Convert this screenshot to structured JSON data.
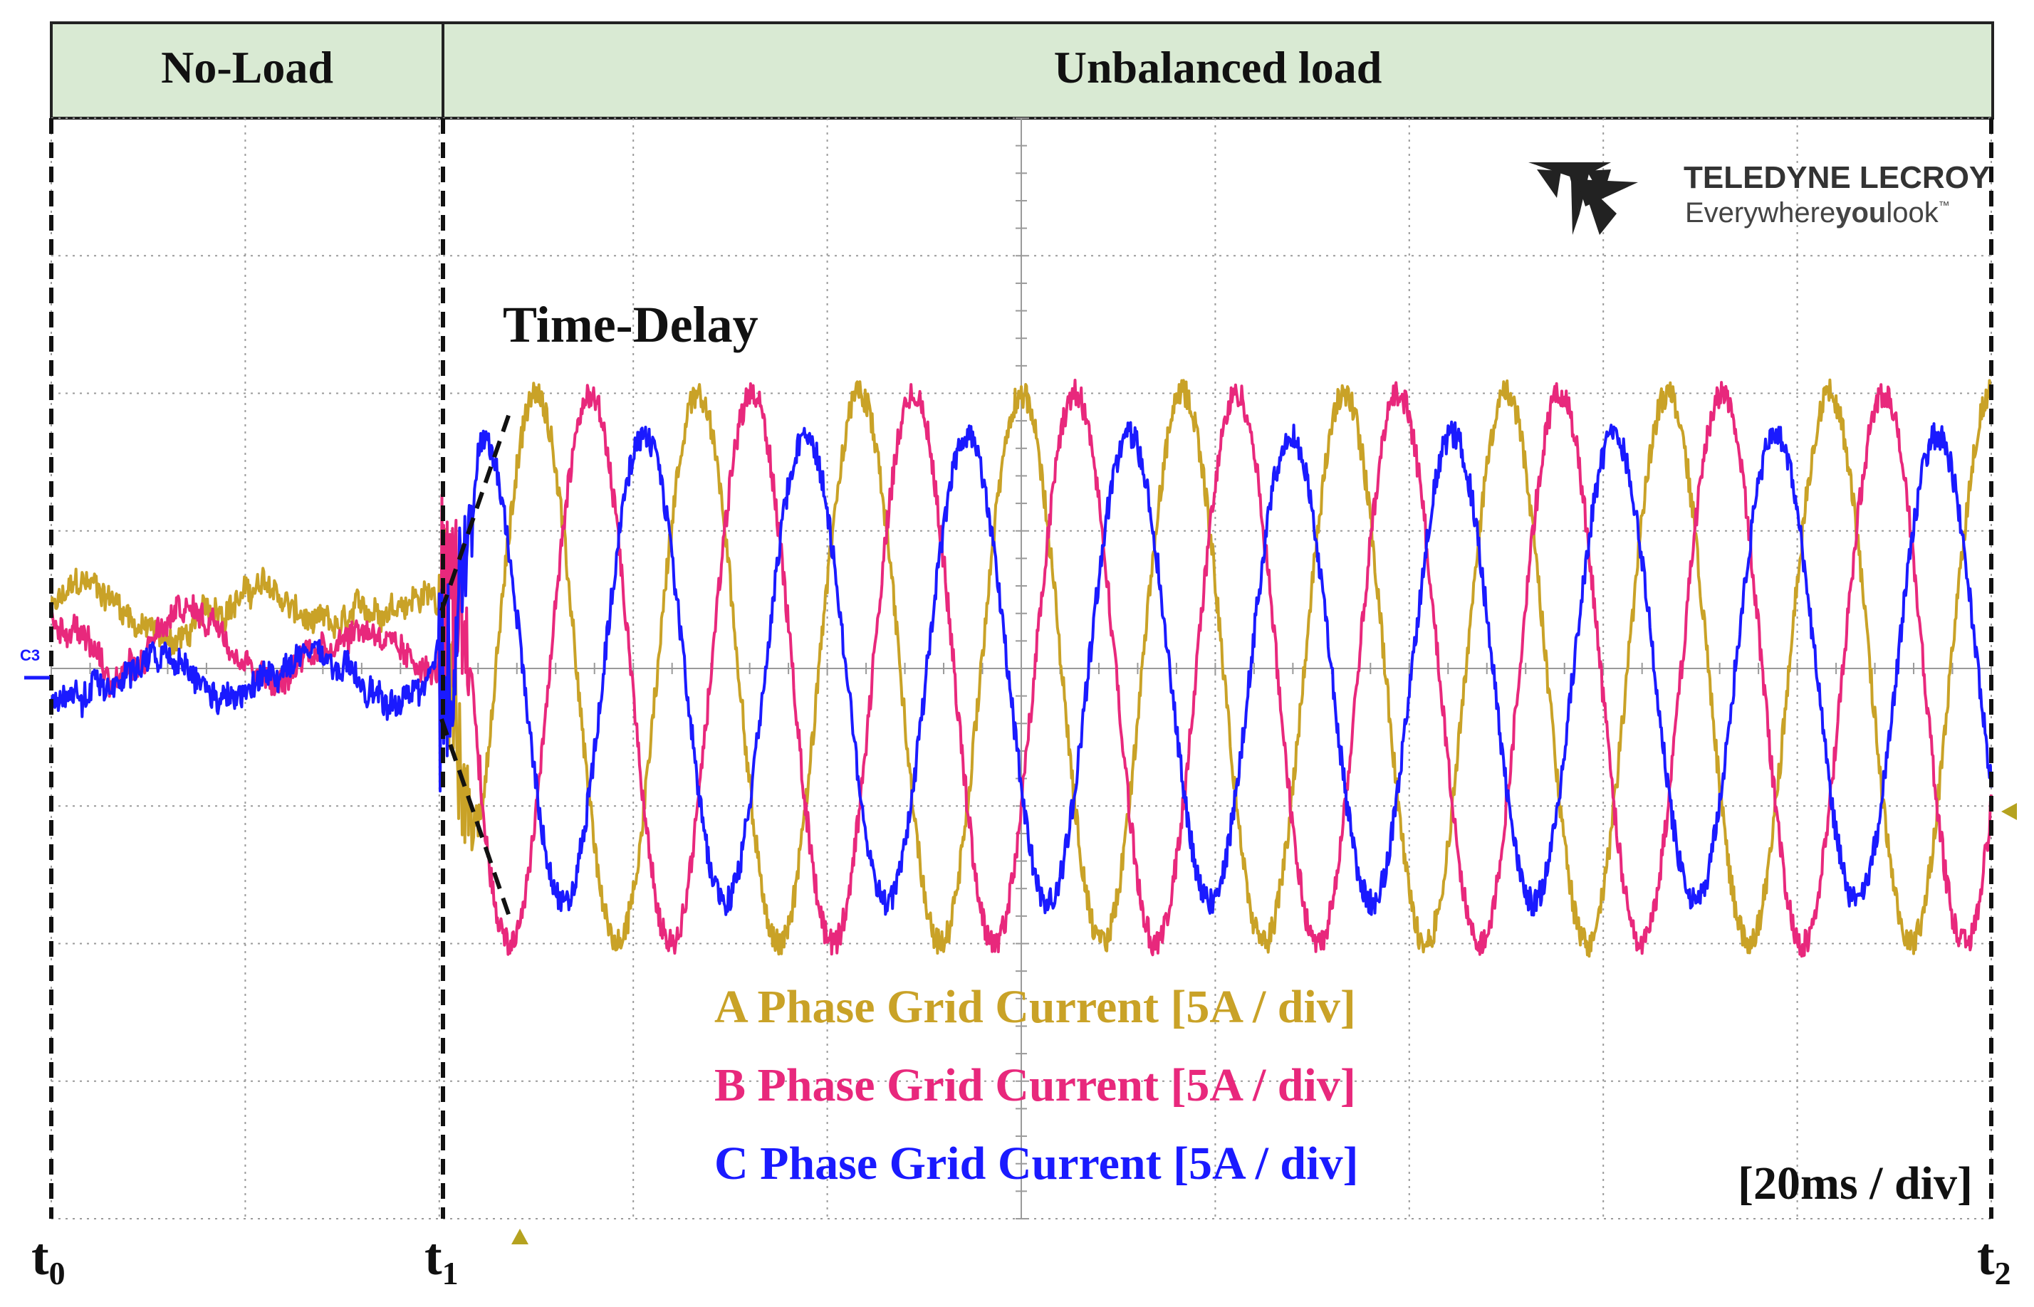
{
  "header": {
    "segments": [
      {
        "label": "No-Load"
      },
      {
        "label": "Unbalanced load"
      }
    ],
    "fill_color": "#d9ead3"
  },
  "logo": {
    "brand": "TELEDYNE LECROY",
    "tagline_prefix": "Everywhere",
    "tagline_bold": "you",
    "tagline_suffix": "look",
    "trademark": "™"
  },
  "annotations": {
    "time_delay": "Time-Delay",
    "timescale": "[20ms / div]",
    "channel_marker": "C3"
  },
  "time_markers": [
    {
      "base": "t",
      "sub": "0"
    },
    {
      "base": "t",
      "sub": "1"
    },
    {
      "base": "t",
      "sub": "2"
    }
  ],
  "legend": [
    {
      "label": "A Phase Grid Current [5A / div]",
      "color": "#c9a227"
    },
    {
      "label": "B Phase Grid Current [5A / div]",
      "color": "#e8287c"
    },
    {
      "label": "C Phase Grid Current [5A / div]",
      "color": "#1a1aff"
    }
  ],
  "chart_data": {
    "type": "line",
    "x_unit": "ms",
    "y_unit": "A",
    "x_div": 20,
    "y_div": 5,
    "xlim": [
      0,
      200
    ],
    "ylim": [
      -20,
      20
    ],
    "t0": 0,
    "t1": 40,
    "t2": 200,
    "grid": true,
    "series": [
      {
        "name": "A Phase Grid Current [5A / div]",
        "color": "#c9a227",
        "amplitude": 10,
        "no_load_offset": 2,
        "phase_deg": 90
      },
      {
        "name": "B Phase Grid Current [5A / div]",
        "color": "#e8287c",
        "amplitude": 10,
        "no_load_offset": 1,
        "phase_deg": -30
      },
      {
        "name": "C Phase Grid Current [5A / div]",
        "color": "#1a1aff",
        "amplitude": 8.5,
        "no_load_offset": -0.5,
        "phase_deg": -150
      }
    ],
    "frequency_hz": 60
  }
}
